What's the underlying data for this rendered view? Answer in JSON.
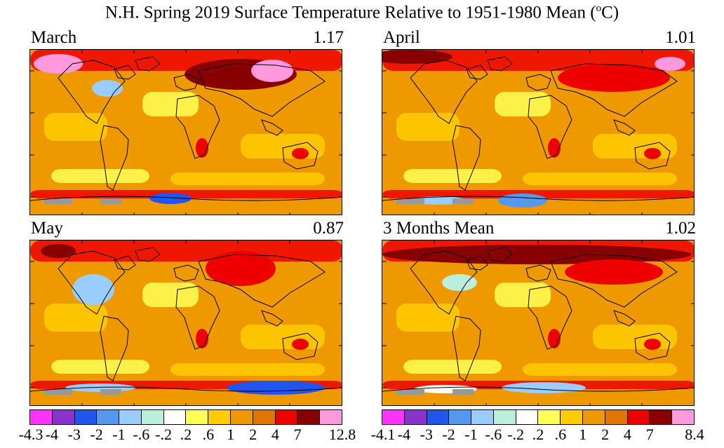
{
  "title": {
    "main": "N.H. Spring 2019 Surface Temperature Relative to 1951-1980 Mean (",
    "sup": "o",
    "end": "C)"
  },
  "panels": [
    {
      "label": "March",
      "value": "1.17"
    },
    {
      "label": "April",
      "value": "1.01"
    },
    {
      "label": "May",
      "value": "0.87"
    },
    {
      "label": "3 Months Mean",
      "value": "1.02"
    }
  ],
  "legend_left": [
    "-4.3",
    "-4",
    "-3",
    "-2",
    "-1",
    "-.6",
    "-.2",
    ".2",
    ".6",
    "1",
    "2",
    "4",
    "7",
    "12.8"
  ],
  "legend_right": [
    "-4.1",
    "-4",
    "-3",
    "-2",
    "-1",
    "-.6",
    "-.2",
    ".2",
    ".6",
    "1",
    "2",
    "4",
    "7",
    "8.4"
  ],
  "colors": [
    "#ff33ff",
    "#8833cc",
    "#2255ee",
    "#5599ee",
    "#99ccff",
    "#bbeedd",
    "#ffffff",
    "#ffff55",
    "#ffcc00",
    "#ee9900",
    "#dd7700",
    "#ee0000",
    "#880000",
    "#ff99dd"
  ],
  "missing_color": "#999999"
}
